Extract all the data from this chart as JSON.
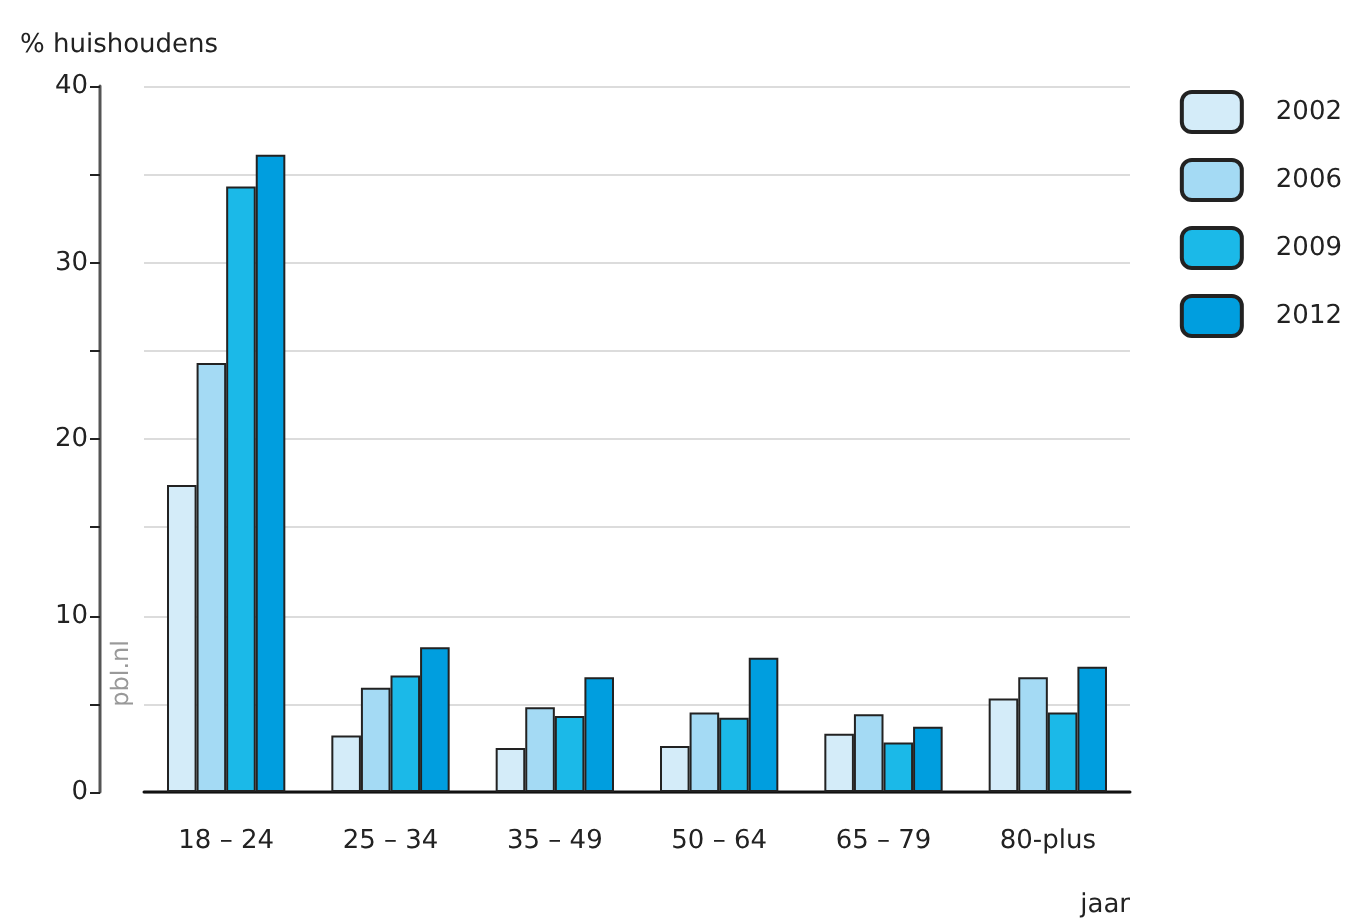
{
  "chart_data": {
    "type": "bar",
    "ylabel": "% huishoudens",
    "xlabel": "jaar",
    "categories": [
      "18 – 24",
      "25 – 34",
      "35 – 49",
      "50 – 64",
      "65 – 79",
      "80-plus"
    ],
    "series": [
      {
        "name": "2002",
        "color": "#d4ecf9",
        "values": [
          17.4,
          3.2,
          2.5,
          2.6,
          3.3,
          5.3
        ]
      },
      {
        "name": "2006",
        "color": "#a4daf4",
        "values": [
          24.3,
          5.9,
          4.8,
          4.5,
          4.4,
          6.5
        ]
      },
      {
        "name": "2009",
        "color": "#1bb9e8",
        "values": [
          34.3,
          6.6,
          4.3,
          4.2,
          2.8,
          4.5
        ]
      },
      {
        "name": "2012",
        "color": "#009edf",
        "values": [
          36.1,
          8.2,
          6.5,
          7.6,
          3.7,
          7.1
        ]
      }
    ],
    "ylim": [
      0,
      40
    ],
    "yticks": [
      0,
      {
        "value": 5,
        "label": null
      },
      10,
      {
        "value": 15,
        "label": null
      },
      20,
      {
        "value": 25,
        "label": null
      },
      30,
      {
        "value": 35,
        "label": null
      },
      40
    ],
    "grid": "y",
    "legend": "top right",
    "annotations": [
      "pbl.nl"
    ]
  }
}
